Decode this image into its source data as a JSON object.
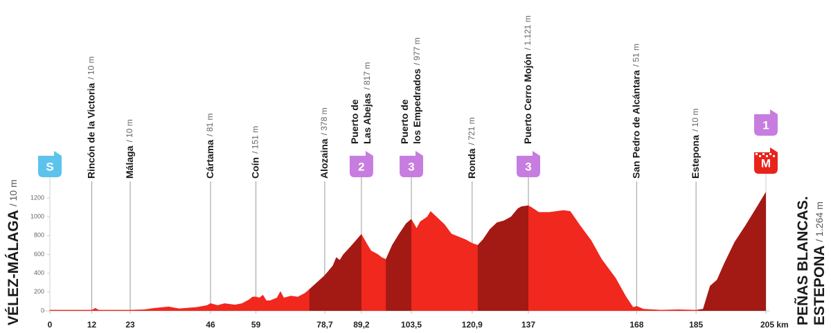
{
  "chart_data": {
    "type": "area",
    "x": [
      0,
      12,
      13,
      14,
      20,
      23,
      27,
      30,
      34,
      37,
      42,
      45,
      46,
      48,
      50,
      53,
      55,
      57,
      58,
      59,
      60,
      61,
      62,
      63,
      65,
      66,
      67,
      69,
      71,
      73,
      74.3,
      78.7,
      81,
      82,
      83,
      84,
      86,
      89.2,
      91,
      92,
      93,
      94,
      95,
      96.2,
      98,
      100,
      102,
      103.5,
      105,
      106,
      108,
      109,
      111,
      113,
      115,
      117,
      119,
      120.9,
      122.5,
      124,
      126,
      128,
      130,
      132,
      134,
      135,
      137,
      138,
      140,
      143,
      147,
      149,
      152,
      155,
      158,
      162,
      165,
      167,
      168,
      170,
      175,
      180,
      185,
      187,
      189,
      191,
      193,
      196,
      199,
      202,
      205
    ],
    "values": [
      10,
      10,
      30,
      10,
      10,
      10,
      15,
      30,
      45,
      25,
      40,
      60,
      81,
      60,
      80,
      65,
      80,
      120,
      150,
      151,
      140,
      170,
      110,
      110,
      140,
      210,
      140,
      160,
      150,
      190,
      230,
      378,
      480,
      570,
      540,
      600,
      680,
      817,
      700,
      640,
      620,
      600,
      570,
      550,
      700,
      820,
      930,
      977,
      880,
      950,
      1000,
      1060,
      990,
      920,
      820,
      790,
      760,
      721,
      700,
      760,
      870,
      940,
      960,
      1000,
      1090,
      1110,
      1121,
      1100,
      1050,
      1050,
      1070,
      1060,
      900,
      750,
      550,
      350,
      150,
      40,
      51,
      20,
      10,
      15,
      10,
      20,
      265,
      330,
      500,
      730,
      900,
      1080,
      1264
    ],
    "xlim": [
      0,
      205
    ],
    "ylim": [
      0,
      1200
    ],
    "yticks": [
      0,
      200,
      400,
      600,
      800,
      1000,
      1200
    ],
    "xticks": [
      0,
      12,
      23,
      46,
      59,
      {
        "value": 78.7,
        "label": "78,7"
      },
      {
        "value": 89.2,
        "label": "89,2"
      },
      {
        "value": 103.5,
        "label": "103,5"
      },
      {
        "value": 120.9,
        "label": "120,9"
      },
      137,
      168,
      185,
      {
        "value": 205,
        "label": "205 km"
      }
    ],
    "climbs": [
      {
        "start": 74.3,
        "end": 89.2
      },
      {
        "start": 96.2,
        "end": 103.5
      },
      {
        "start": 122.5,
        "end": 137
      },
      {
        "start": 185.6,
        "end": 205
      }
    ],
    "colors": {
      "profile": "#f0281e",
      "climb": "#a31a14",
      "mountain": "#c77de0",
      "start": "#5cc4ec",
      "finish": "#e8231b"
    },
    "start": {
      "km": 0,
      "badge": "S",
      "name": [
        "VÉLEZ-MÁLAGA"
      ],
      "altitude": "/ 10 m"
    },
    "finish": {
      "km": 205,
      "badges": [
        "1",
        "M"
      ],
      "name": [
        "PEÑAS BLANCAS.",
        "ESTEPONA"
      ],
      "altitude": "/ 1.264 m"
    },
    "waypoints": [
      {
        "km": 12,
        "name": [
          "Rincón de la Victoria"
        ],
        "altitude": "/ 10 m"
      },
      {
        "km": 23,
        "name": [
          "Málaga"
        ],
        "altitude": "/ 10 m"
      },
      {
        "km": 46,
        "name": [
          "Cártama"
        ],
        "altitude": "/ 81 m"
      },
      {
        "km": 59,
        "name": [
          "Coín"
        ],
        "altitude": "/ 151 m"
      },
      {
        "km": 78.7,
        "name": [
          "Alozaina"
        ],
        "altitude": "/ 378 m"
      },
      {
        "km": 89.2,
        "name": [
          "Puerto de",
          "Las Abejas"
        ],
        "altitude": "/ 817 m",
        "badge": "2"
      },
      {
        "km": 103.5,
        "name": [
          "Puerto de",
          "los Empedrados"
        ],
        "altitude": "/ 977 m",
        "badge": "3"
      },
      {
        "km": 120.9,
        "name": [
          "Ronda"
        ],
        "altitude": "/ 721 m"
      },
      {
        "km": 137,
        "name": [
          "Puerto Cerro Mojón"
        ],
        "altitude": "/ 1.121 m",
        "badge": "3"
      },
      {
        "km": 168,
        "name": [
          "San Pedro de Alcántara"
        ],
        "altitude": "/ 51 m"
      },
      {
        "km": 185,
        "name": [
          "Estepona"
        ],
        "altitude": "/ 10 m"
      }
    ]
  }
}
